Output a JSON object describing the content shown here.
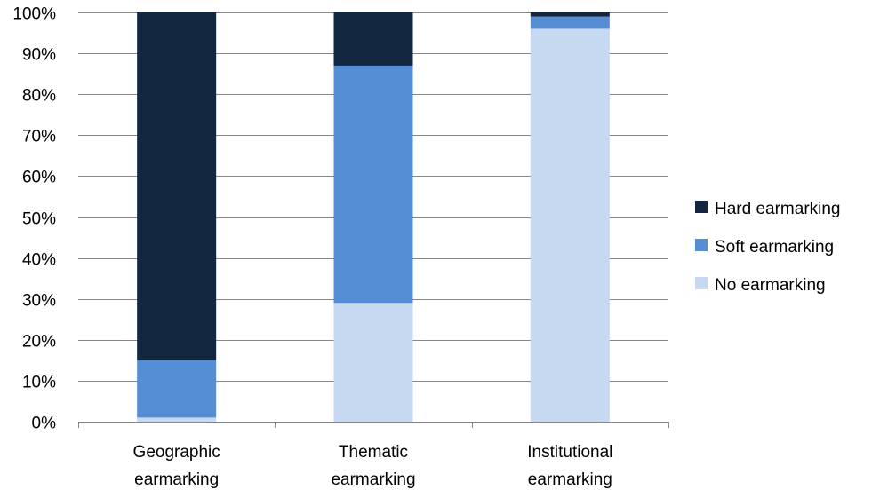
{
  "chart_data": {
    "type": "bar",
    "stacked": true,
    "percent_stacked": true,
    "categories": [
      [
        "Geographic",
        "earmarking"
      ],
      [
        "Thematic",
        "earmarking"
      ],
      [
        "Institutional",
        "earmarking"
      ]
    ],
    "series": [
      {
        "name": "No earmarking",
        "color": "#c6d9f1",
        "values": [
          1,
          29,
          96
        ]
      },
      {
        "name": "Soft earmarking",
        "color": "#558ed5",
        "values": [
          14,
          58,
          3
        ]
      },
      {
        "name": "Hard earmarking",
        "color": "#132640",
        "values": [
          85,
          13,
          1
        ]
      }
    ],
    "legend_order": [
      "Hard earmarking",
      "Soft earmarking",
      "No earmarking"
    ],
    "legend_position": "right",
    "yticks": [
      "0%",
      "10%",
      "20%",
      "30%",
      "40%",
      "50%",
      "60%",
      "70%",
      "80%",
      "90%",
      "100%"
    ],
    "ylim": [
      0,
      100
    ],
    "grid": true,
    "gridline_color": "#868686"
  }
}
